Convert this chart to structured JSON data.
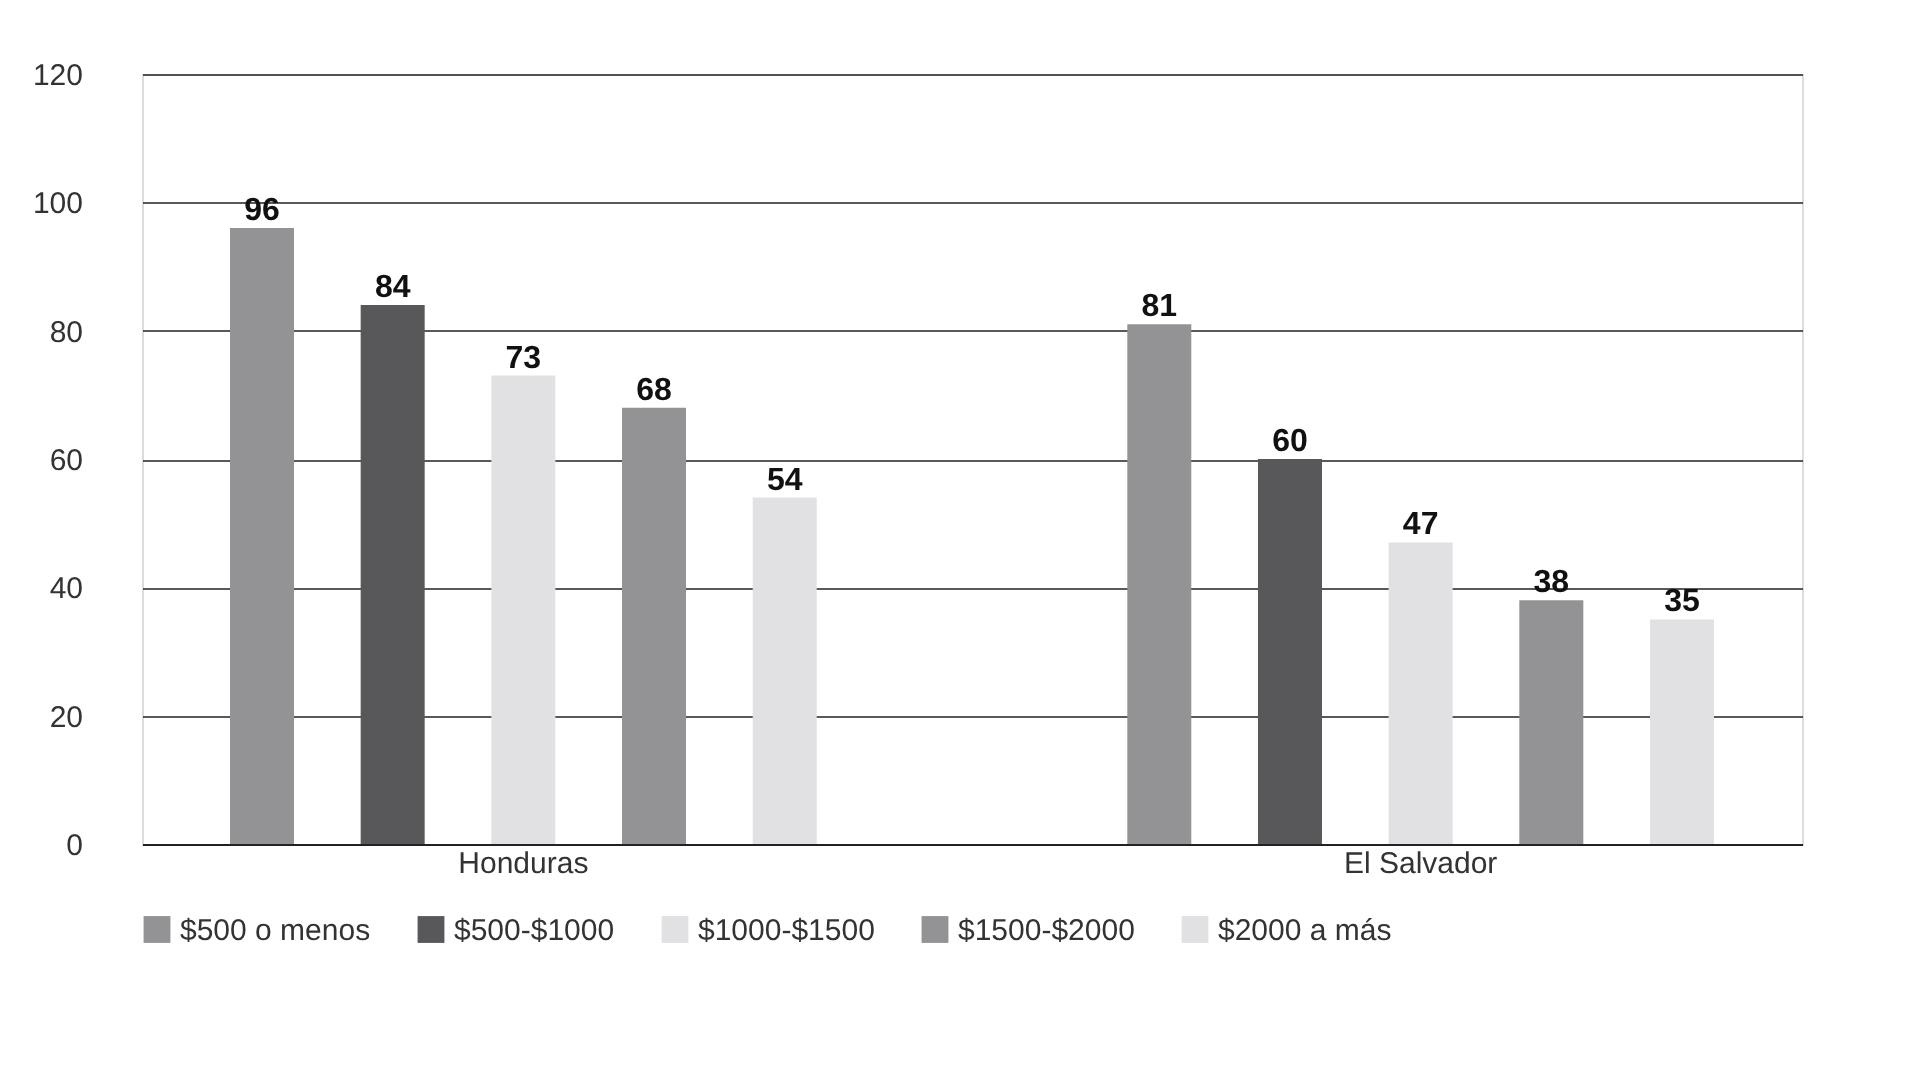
{
  "chart_data": {
    "type": "bar",
    "categories": [
      "Honduras",
      "El Salvador"
    ],
    "series": [
      {
        "name": "$500 o menos",
        "color": "#939395",
        "values": [
          96,
          81
        ]
      },
      {
        "name": "$500-$1000",
        "color": "#58585a",
        "values": [
          84,
          60
        ]
      },
      {
        "name": "$1000-$1500",
        "color": "#e1e1e3",
        "values": [
          73,
          47
        ]
      },
      {
        "name": "$1500-$2000",
        "color": "#939395",
        "values": [
          68,
          38
        ]
      },
      {
        "name": "$2000 a más",
        "color": "#e1e1e3",
        "values": [
          54,
          35
        ]
      }
    ],
    "ylim": [
      0,
      120
    ],
    "yticks": [
      0,
      20,
      40,
      60,
      80,
      100,
      120
    ],
    "grid": "y",
    "legend": "bottom",
    "data_labels": true
  }
}
